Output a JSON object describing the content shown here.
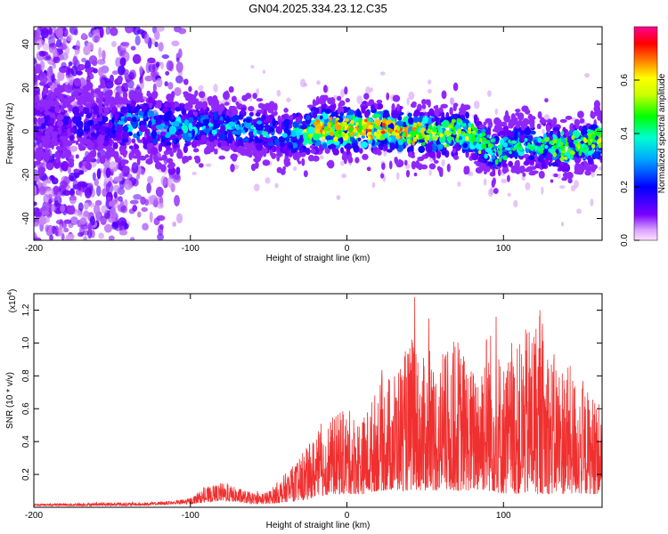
{
  "chart_data": [
    {
      "type": "heatmap",
      "title": "GN04.2025.334.23.12.C35",
      "xlabel": "Height of straight line (km)",
      "ylabel": "Frequency (Hz)",
      "xlim": [
        -200,
        163
      ],
      "ylim": [
        -50,
        48
      ],
      "xticks": [
        -200,
        -100,
        0,
        100
      ],
      "xtick_labels": [
        "-200",
        "-100",
        "0",
        "100"
      ],
      "yticks": [
        -40,
        -20,
        0,
        20,
        40
      ],
      "ytick_labels": [
        "-40",
        "-20",
        "0",
        "20",
        "40"
      ],
      "colorbar": {
        "label": "Normalized spectral amplitude",
        "range": [
          0,
          0.8
        ],
        "ticks": [
          0.0,
          0.2,
          0.4,
          0.6
        ],
        "tick_labels": [
          "0.0",
          "0.2",
          "0.4",
          "0.6"
        ],
        "colormap": [
          "#f0c8f0",
          "#7800ff",
          "#0000ff",
          "#00ffff",
          "#00ff00",
          "#ffff00",
          "#ff8000",
          "#ff0000",
          "#ff00a0"
        ]
      },
      "ridge": {
        "x": [
          -200,
          -150,
          -140,
          -100,
          -80,
          -60,
          -40,
          -20,
          0,
          20,
          40,
          60,
          80,
          95,
          105,
          120,
          140,
          163
        ],
        "freq_center": [
          3,
          3,
          3,
          2,
          2,
          1,
          -2,
          1,
          1,
          1,
          0,
          -1,
          -1,
          -10,
          -6,
          -6,
          -8,
          -3
        ],
        "peak_amplitude": [
          0.15,
          0.2,
          0.3,
          0.3,
          0.3,
          0.32,
          0.28,
          0.55,
          0.55,
          0.6,
          0.55,
          0.45,
          0.45,
          0.35,
          0.35,
          0.35,
          0.45,
          0.45
        ]
      },
      "noise_region_km": [
        -200,
        -105
      ]
    },
    {
      "type": "line",
      "xlabel": "Height of straight line (km)",
      "ylabel": "SNR (10 * v/v)",
      "multiplier_label": "(x10",
      "multiplier_exp": "4",
      "multiplier_close": ")",
      "xlim": [
        -200,
        163
      ],
      "ylim": [
        0,
        1.3
      ],
      "xticks": [
        -200,
        -100,
        0,
        100
      ],
      "xtick_labels": [
        "-200",
        "-100",
        "0",
        "100"
      ],
      "yticks": [
        0.2,
        0.4,
        0.6,
        0.8,
        1.0,
        1.2
      ],
      "ytick_labels": [
        "0.2",
        "0.4",
        "0.6",
        "0.8",
        "1.0",
        "1.2"
      ],
      "line_color": "#f03030",
      "envelope": {
        "x": [
          -200,
          -150,
          -130,
          -110,
          -100,
          -90,
          -80,
          -70,
          -60,
          -50,
          -40,
          -30,
          -20,
          -10,
          0,
          10,
          20,
          30,
          40,
          50,
          60,
          70,
          80,
          90,
          100,
          110,
          120,
          130,
          140,
          150,
          163
        ],
        "upper": [
          0.02,
          0.03,
          0.03,
          0.04,
          0.06,
          0.12,
          0.15,
          0.12,
          0.09,
          0.1,
          0.2,
          0.3,
          0.45,
          0.55,
          0.6,
          0.55,
          0.75,
          0.85,
          1.0,
          0.9,
          0.9,
          1.05,
          0.85,
          1.15,
          0.9,
          1.0,
          1.2,
          0.95,
          0.9,
          0.75,
          0.65
        ],
        "lower": [
          0.01,
          0.01,
          0.01,
          0.02,
          0.02,
          0.03,
          0.04,
          0.03,
          0.02,
          0.02,
          0.03,
          0.04,
          0.06,
          0.08,
          0.08,
          0.08,
          0.1,
          0.1,
          0.1,
          0.1,
          0.1,
          0.1,
          0.1,
          0.1,
          0.08,
          0.08,
          0.08,
          0.08,
          0.08,
          0.08,
          0.08
        ]
      }
    }
  ]
}
